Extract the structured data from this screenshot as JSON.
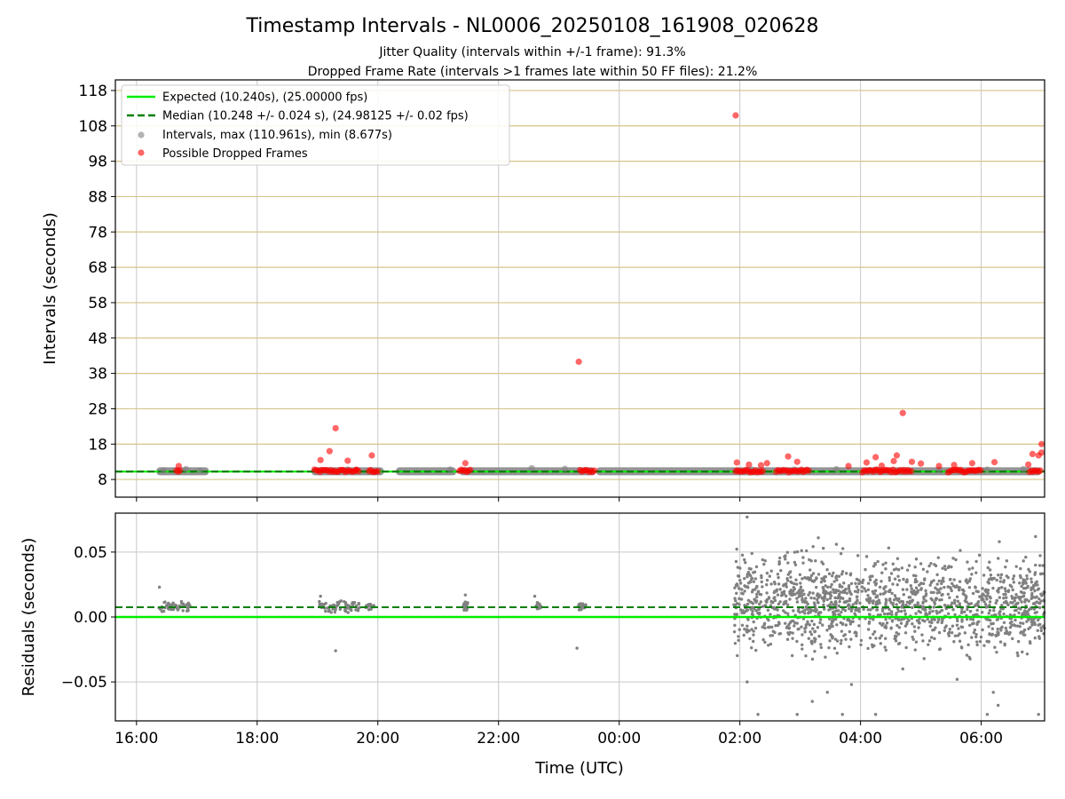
{
  "header": {
    "title": "Timestamp Intervals - NL0006_20250108_161908_020628",
    "subtitle_1": "Jitter Quality (intervals within +/-1 frame): 91.3%",
    "subtitle_2": "Dropped Frame Rate (intervals >1 frames late within 50 FF files): 21.2%"
  },
  "colors": {
    "expected": "#00ee00",
    "median": "#008000",
    "intervals": "#808080",
    "dropped": "#ff0000",
    "hgrid_top": "#d6c48a",
    "grid": "#c8c8c8"
  },
  "chart_data": [
    {
      "type": "scatter",
      "ylabel": "Intervals (seconds)",
      "ylim": [
        3,
        121
      ],
      "yticks": [
        8,
        18,
        28,
        38,
        48,
        58,
        68,
        78,
        88,
        98,
        108,
        118
      ],
      "ytick_labels": [
        "8",
        "18",
        "28",
        "38",
        "48",
        "58",
        "68",
        "78",
        "88",
        "98",
        "108",
        "118"
      ],
      "x_unit": "hours after 16:00 UTC on 2025-01-08",
      "xlim": [
        -0.35,
        15.05
      ],
      "xticks": [
        0,
        2,
        4,
        6,
        8,
        10,
        12,
        14
      ],
      "grid": "x and y",
      "legend_position": "upper-left",
      "legend": [
        "Expected (10.240s), (25.00000 fps)",
        "Median (10.248 +/- 0.024 s), (24.98125 +/- 0.02 fps)",
        "Intervals, max (110.961s), min (8.677s)",
        "Possible Dropped Frames"
      ],
      "lines": [
        {
          "name": "Expected (10.240s), (25.00000 fps)",
          "y": 10.24,
          "style": "solid"
        },
        {
          "name": "Median (10.248 +/- 0.024 s), (24.98125 +/- 0.02 fps)",
          "y": 10.248,
          "style": "dashed"
        }
      ],
      "interval_bands": [
        [
          0.33,
          1.2
        ],
        [
          2.9,
          4.1
        ],
        [
          4.3,
          5.3
        ],
        [
          5.35,
          7.6
        ],
        [
          7.62,
          15.0
        ]
      ],
      "intervals_sample": [
        {
          "x": 0.45,
          "y": 10.6
        },
        {
          "x": 0.82,
          "y": 10.9
        },
        {
          "x": 1.05,
          "y": 10.5
        },
        {
          "x": 3.5,
          "y": 10.8
        },
        {
          "x": 5.2,
          "y": 10.8
        },
        {
          "x": 6.55,
          "y": 11.2
        },
        {
          "x": 7.1,
          "y": 11.0
        },
        {
          "x": 10.2,
          "y": 10.8
        },
        {
          "x": 10.9,
          "y": 10.8
        },
        {
          "x": 11.6,
          "y": 10.9
        },
        {
          "x": 12.25,
          "y": 10.8
        },
        {
          "x": 13.3,
          "y": 10.7
        },
        {
          "x": 14.1,
          "y": 10.8
        },
        {
          "x": 14.7,
          "y": 10.9
        }
      ],
      "dropped_runs": [
        [
          0.66,
          0.73
        ],
        [
          2.95,
          3.65
        ],
        [
          3.65,
          3.7
        ],
        [
          3.85,
          4.0
        ],
        [
          5.35,
          5.55
        ],
        [
          7.35,
          7.6
        ],
        [
          9.93,
          10.4
        ],
        [
          10.6,
          11.15
        ],
        [
          12.03,
          12.85
        ],
        [
          13.45,
          14.0
        ],
        [
          14.8,
          15.0
        ]
      ],
      "dropped_points": [
        {
          "x": 0.7,
          "y": 11.8
        },
        {
          "x": 3.05,
          "y": 13.5
        },
        {
          "x": 3.2,
          "y": 16.0
        },
        {
          "x": 3.3,
          "y": 22.5
        },
        {
          "x": 3.5,
          "y": 13.3
        },
        {
          "x": 3.9,
          "y": 14.8
        },
        {
          "x": 5.45,
          "y": 12.6
        },
        {
          "x": 7.33,
          "y": 41.3
        },
        {
          "x": 9.93,
          "y": 110.961
        },
        {
          "x": 9.95,
          "y": 12.8
        },
        {
          "x": 10.15,
          "y": 12.2
        },
        {
          "x": 10.35,
          "y": 12.0
        },
        {
          "x": 10.45,
          "y": 12.6
        },
        {
          "x": 10.8,
          "y": 14.5
        },
        {
          "x": 10.95,
          "y": 13.0
        },
        {
          "x": 11.8,
          "y": 11.8
        },
        {
          "x": 12.1,
          "y": 12.8
        },
        {
          "x": 12.25,
          "y": 14.3
        },
        {
          "x": 12.35,
          "y": 11.9
        },
        {
          "x": 12.55,
          "y": 13.2
        },
        {
          "x": 12.6,
          "y": 14.8
        },
        {
          "x": 12.7,
          "y": 26.8
        },
        {
          "x": 12.85,
          "y": 13.0
        },
        {
          "x": 13.0,
          "y": 12.5
        },
        {
          "x": 13.3,
          "y": 11.8
        },
        {
          "x": 13.55,
          "y": 12.1
        },
        {
          "x": 13.85,
          "y": 12.6
        },
        {
          "x": 14.22,
          "y": 12.9
        },
        {
          "x": 14.78,
          "y": 12.2
        },
        {
          "x": 14.85,
          "y": 15.2
        },
        {
          "x": 14.95,
          "y": 14.8
        },
        {
          "x": 15.0,
          "y": 15.6
        },
        {
          "x": 15.0,
          "y": 18.0
        }
      ]
    },
    {
      "type": "scatter",
      "xlabel": "Time (UTC)",
      "ylabel": "Residuals (seconds)",
      "ylim": [
        -0.08,
        0.08
      ],
      "yticks": [
        -0.05,
        0,
        0.05
      ],
      "ytick_labels": [
        "−0.05",
        "0.00",
        "0.05"
      ],
      "x_unit": "hours after 16:00 UTC on 2025-01-08",
      "xlim": [
        -0.35,
        15.05
      ],
      "xticks": [
        0,
        2,
        4,
        6,
        8,
        10,
        12,
        14
      ],
      "xtick_labels": [
        "16:00",
        "18:00",
        "20:00",
        "22:00",
        "00:00",
        "02:00",
        "04:00",
        "06:00"
      ],
      "grid": "x and y",
      "lines": [
        {
          "name": "Expected",
          "y": 0.0,
          "style": "solid"
        },
        {
          "name": "Median",
          "y": 0.0075,
          "style": "dashed"
        }
      ],
      "residual_clusters_early": [
        {
          "x_range": [
            0.35,
            0.9
          ],
          "y_center": 0.008,
          "spread": 0.005
        },
        {
          "x_range": [
            3.0,
            3.7
          ],
          "y_center": 0.008,
          "spread": 0.005
        },
        {
          "x_range": [
            3.8,
            3.95
          ],
          "y_center": 0.008,
          "spread": 0.003
        },
        {
          "x_range": [
            5.4,
            5.5
          ],
          "y_center": 0.008,
          "spread": 0.004
        },
        {
          "x_range": [
            6.6,
            6.7
          ],
          "y_center": 0.008,
          "spread": 0.004
        },
        {
          "x_range": [
            7.3,
            7.45
          ],
          "y_center": 0.008,
          "spread": 0.003
        }
      ],
      "residual_outliers_early": [
        {
          "x": 0.38,
          "y": 0.023
        },
        {
          "x": 3.3,
          "y": -0.026
        },
        {
          "x": 3.05,
          "y": 0.016
        },
        {
          "x": 5.45,
          "y": 0.017
        },
        {
          "x": 6.6,
          "y": 0.016
        },
        {
          "x": 7.3,
          "y": -0.024
        }
      ],
      "residual_band_late": {
        "x_range": [
          9.9,
          15.05
        ],
        "levels": [
          0.0,
          0.02
        ],
        "spread": 0.045
      },
      "residual_outliers_late": [
        {
          "x": 10.12,
          "y": 0.077
        },
        {
          "x": 10.2,
          "y": 0.049
        },
        {
          "x": 10.12,
          "y": -0.05
        },
        {
          "x": 10.3,
          "y": -0.075
        },
        {
          "x": 11.3,
          "y": 0.061
        },
        {
          "x": 11.6,
          "y": 0.056
        },
        {
          "x": 11.2,
          "y": -0.065
        },
        {
          "x": 10.95,
          "y": -0.075
        },
        {
          "x": 11.45,
          "y": -0.058
        },
        {
          "x": 11.85,
          "y": -0.052
        },
        {
          "x": 11.7,
          "y": -0.075
        },
        {
          "x": 12.25,
          "y": -0.075
        },
        {
          "x": 12.7,
          "y": -0.04
        },
        {
          "x": 13.6,
          "y": -0.048
        },
        {
          "x": 14.3,
          "y": 0.058
        },
        {
          "x": 14.2,
          "y": -0.058
        },
        {
          "x": 14.1,
          "y": -0.075
        },
        {
          "x": 14.28,
          "y": -0.068
        },
        {
          "x": 14.9,
          "y": 0.062
        },
        {
          "x": 14.95,
          "y": -0.075
        }
      ]
    }
  ]
}
